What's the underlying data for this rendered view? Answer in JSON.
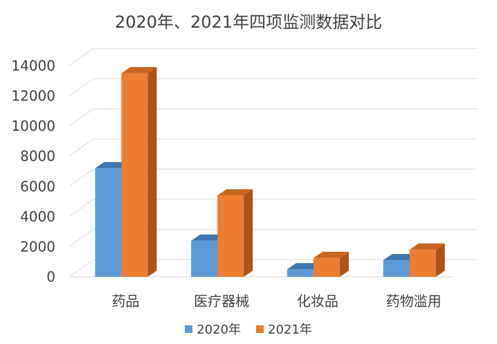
{
  "chart_data": {
    "type": "bar",
    "title": "2020年、2021年四项监测数据对比",
    "categories": [
      "药品",
      "医疗器械",
      "化妆品",
      "药物滥用"
    ],
    "series": [
      {
        "name": "2020年",
        "values": [
          7200,
          2400,
          500,
          1100
        ],
        "color": "#5B9BD5",
        "top_color": "#3F78B0",
        "side_color": "#3F6E9E"
      },
      {
        "name": "2021年",
        "values": [
          13500,
          5400,
          1250,
          1800
        ],
        "color": "#ED7D31",
        "top_color": "#C9651F",
        "side_color": "#A9541A"
      }
    ],
    "ylim": [
      0,
      14000
    ],
    "yticks": [
      0,
      2000,
      4000,
      6000,
      8000,
      10000,
      12000,
      14000
    ],
    "grid": true,
    "legend_position": "bottom",
    "style": "3d-column"
  }
}
